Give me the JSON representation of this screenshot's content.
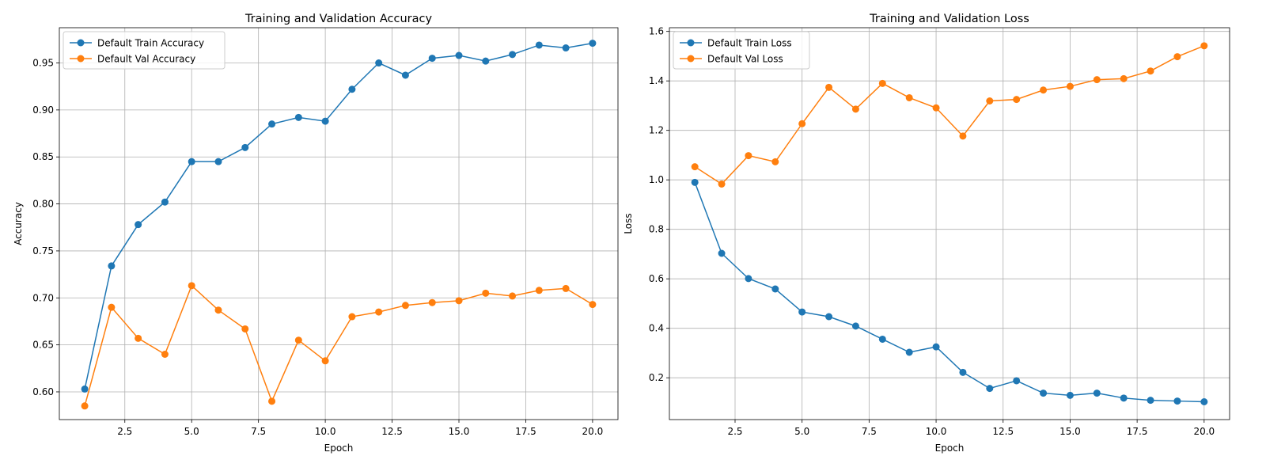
{
  "colors": {
    "train": "#1f77b4",
    "val": "#ff7f0e",
    "grid": "#b0b0b0",
    "axis": "#000000"
  },
  "chart_data": [
    {
      "type": "line",
      "title": "Training and Validation Accuracy",
      "xlabel": "Epoch",
      "ylabel": "Accuracy",
      "x": [
        1,
        2,
        3,
        4,
        5,
        6,
        7,
        8,
        9,
        10,
        11,
        12,
        13,
        14,
        15,
        16,
        17,
        18,
        19,
        20
      ],
      "xlim": [
        0.05,
        20.95
      ],
      "ylim": [
        0.5705,
        0.9875
      ],
      "xticks": [
        2.5,
        5.0,
        7.5,
        10.0,
        12.5,
        15.0,
        17.5,
        20.0
      ],
      "xtick_labels": [
        "2.5",
        "5.0",
        "7.5",
        "10.0",
        "12.5",
        "15.0",
        "17.5",
        "20.0"
      ],
      "yticks": [
        0.6,
        0.65,
        0.7,
        0.75,
        0.8,
        0.85,
        0.9,
        0.95
      ],
      "ytick_labels": [
        "0.60",
        "0.65",
        "0.70",
        "0.75",
        "0.80",
        "0.85",
        "0.90",
        "0.95"
      ],
      "grid": true,
      "legend_loc": "upper left",
      "series": [
        {
          "name": "Default Train Accuracy",
          "color": "#1f77b4",
          "values": [
            0.603,
            0.734,
            0.778,
            0.802,
            0.845,
            0.845,
            0.86,
            0.885,
            0.892,
            0.888,
            0.922,
            0.95,
            0.937,
            0.955,
            0.958,
            0.952,
            0.959,
            0.969,
            0.966,
            0.971
          ]
        },
        {
          "name": "Default Val Accuracy",
          "color": "#ff7f0e",
          "values": [
            0.585,
            0.69,
            0.657,
            0.64,
            0.713,
            0.687,
            0.667,
            0.59,
            0.655,
            0.633,
            0.68,
            0.685,
            0.692,
            0.695,
            0.697,
            0.705,
            0.702,
            0.708,
            0.71,
            0.693
          ]
        }
      ]
    },
    {
      "type": "line",
      "title": "Training and Validation Loss",
      "xlabel": "Epoch",
      "ylabel": "Loss",
      "x": [
        1,
        2,
        3,
        4,
        5,
        6,
        7,
        8,
        9,
        10,
        11,
        12,
        13,
        14,
        15,
        16,
        17,
        18,
        19,
        20
      ],
      "xlim": [
        0.05,
        20.95
      ],
      "ylim": [
        0.031,
        1.615
      ],
      "xticks": [
        2.5,
        5.0,
        7.5,
        10.0,
        12.5,
        15.0,
        17.5,
        20.0
      ],
      "xtick_labels": [
        "2.5",
        "5.0",
        "7.5",
        "10.0",
        "12.5",
        "15.0",
        "17.5",
        "20.0"
      ],
      "yticks": [
        0.2,
        0.4,
        0.6,
        0.8,
        1.0,
        1.2,
        1.4,
        1.6
      ],
      "ytick_labels": [
        "0.2",
        "0.4",
        "0.6",
        "0.8",
        "1.0",
        "1.2",
        "1.4",
        "1.6"
      ],
      "grid": true,
      "legend_loc": "upper left",
      "series": [
        {
          "name": "Default Train Loss",
          "color": "#1f77b4",
          "values": [
            0.99,
            0.703,
            0.601,
            0.559,
            0.466,
            0.447,
            0.409,
            0.356,
            0.303,
            0.325,
            0.222,
            0.157,
            0.188,
            0.138,
            0.129,
            0.138,
            0.118,
            0.109,
            0.106,
            0.103
          ]
        },
        {
          "name": "Default Val Loss",
          "color": "#ff7f0e",
          "values": [
            1.053,
            0.983,
            1.098,
            1.073,
            1.227,
            1.374,
            1.286,
            1.39,
            1.332,
            1.291,
            1.177,
            1.319,
            1.325,
            1.363,
            1.378,
            1.405,
            1.409,
            1.44,
            1.498,
            1.542
          ]
        }
      ]
    }
  ]
}
